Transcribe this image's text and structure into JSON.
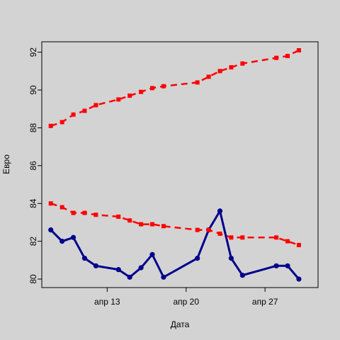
{
  "chart_data": {
    "type": "line",
    "xlabel": "Дата",
    "ylabel": "Евро",
    "x_ticks": [
      {
        "value": 13,
        "label": "апр 13"
      },
      {
        "value": 20,
        "label": "апр 20"
      },
      {
        "value": 27,
        "label": "апр 27"
      }
    ],
    "y_ticks": [
      80,
      82,
      84,
      86,
      88,
      90,
      92
    ],
    "xlim": [
      7.2,
      31.7
    ],
    "ylim": [
      79.55,
      92.55
    ],
    "grid": false,
    "series": [
      {
        "color": "#00008b",
        "line_style": "solid",
        "marker": "circle",
        "points": [
          {
            "x": 8,
            "y": 82.6
          },
          {
            "x": 9,
            "y": 82.0
          },
          {
            "x": 10,
            "y": 82.2
          },
          {
            "x": 11,
            "y": 81.1
          },
          {
            "x": 12,
            "y": 80.7
          },
          {
            "x": 14,
            "y": 80.5
          },
          {
            "x": 15,
            "y": 80.1
          },
          {
            "x": 16,
            "y": 80.6
          },
          {
            "x": 17,
            "y": 81.3
          },
          {
            "x": 18,
            "y": 80.1
          },
          {
            "x": 21,
            "y": 81.1
          },
          {
            "x": 22,
            "y": 82.6
          },
          {
            "x": 23,
            "y": 83.6
          },
          {
            "x": 24,
            "y": 81.1
          },
          {
            "x": 25,
            "y": 80.2
          },
          {
            "x": 28,
            "y": 80.7
          },
          {
            "x": 29,
            "y": 80.7
          },
          {
            "x": 30,
            "y": 80.0
          }
        ]
      },
      {
        "color": "#ff0000",
        "line_style": "dashed",
        "marker": "square",
        "points": [
          {
            "x": 8,
            "y": 88.1
          },
          {
            "x": 9,
            "y": 88.3
          },
          {
            "x": 10,
            "y": 88.7
          },
          {
            "x": 11,
            "y": 88.9
          },
          {
            "x": 12,
            "y": 89.2
          },
          {
            "x": 14,
            "y": 89.5
          },
          {
            "x": 15,
            "y": 89.7
          },
          {
            "x": 16,
            "y": 89.9
          },
          {
            "x": 17,
            "y": 90.1
          },
          {
            "x": 18,
            "y": 90.2
          },
          {
            "x": 21,
            "y": 90.4
          },
          {
            "x": 22,
            "y": 90.7
          },
          {
            "x": 23,
            "y": 91.0
          },
          {
            "x": 24,
            "y": 91.2
          },
          {
            "x": 25,
            "y": 91.4
          },
          {
            "x": 28,
            "y": 91.7
          },
          {
            "x": 29,
            "y": 91.8
          },
          {
            "x": 30,
            "y": 92.1
          }
        ]
      },
      {
        "color": "#ff0000",
        "line_style": "dashed",
        "marker": "square",
        "points": [
          {
            "x": 8,
            "y": 84.0
          },
          {
            "x": 9,
            "y": 83.8
          },
          {
            "x": 10,
            "y": 83.5
          },
          {
            "x": 11,
            "y": 83.5
          },
          {
            "x": 12,
            "y": 83.4
          },
          {
            "x": 14,
            "y": 83.3
          },
          {
            "x": 15,
            "y": 83.1
          },
          {
            "x": 16,
            "y": 82.9
          },
          {
            "x": 17,
            "y": 82.9
          },
          {
            "x": 18,
            "y": 82.8
          },
          {
            "x": 21,
            "y": 82.6
          },
          {
            "x": 22,
            "y": 82.6
          },
          {
            "x": 23,
            "y": 82.4
          },
          {
            "x": 24,
            "y": 82.2
          },
          {
            "x": 25,
            "y": 82.2
          },
          {
            "x": 28,
            "y": 82.2
          },
          {
            "x": 29,
            "y": 82.0
          },
          {
            "x": 30,
            "y": 81.8
          }
        ]
      }
    ]
  }
}
